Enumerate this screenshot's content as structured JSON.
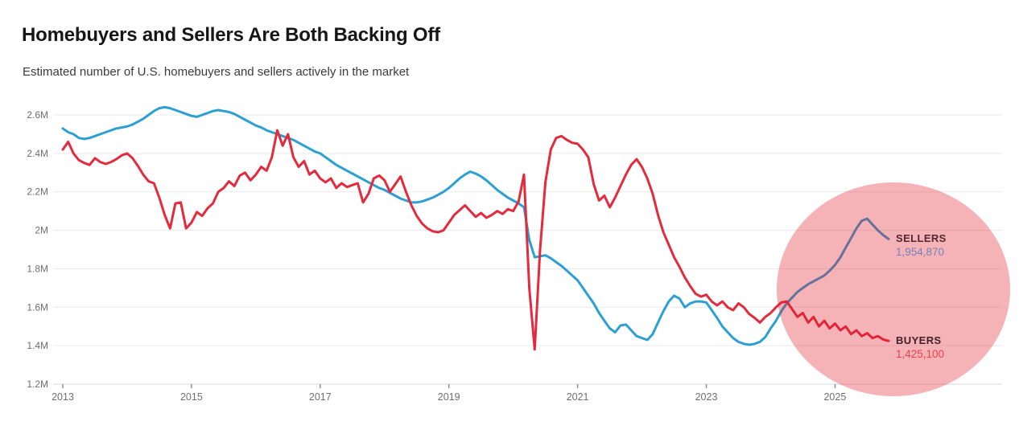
{
  "title": "Homebuyers and Sellers Are Both Backing Off",
  "subtitle": "Estimated number of U.S. homebuyers and sellers actively in the market",
  "annotations": {
    "sellers_label": "SELLERS",
    "sellers_value": "1,954,870",
    "buyers_label": "BUYERS",
    "buyers_value": "1,425,100"
  },
  "colors": {
    "sellers_line": "#2C9FD3",
    "buyers_line": "#E32B3D",
    "highlight_circle": "rgba(225,25,38,0.33)",
    "sellers_label_text": "#532830",
    "sellers_value_text": "#7482B6",
    "buyers_label_text": "#3F2128",
    "buyers_value_text": "#E8434F",
    "gridline": "#E9E9E9",
    "axis_line": "#D8D8D8",
    "tick_mark": "#8F8F8F"
  },
  "chart_data": {
    "type": "line",
    "title": "Homebuyers and Sellers Are Both Backing Off",
    "subtitle": "Estimated number of U.S. homebuyers and sellers actively in the market",
    "x_start_year": 2013,
    "x_step": "month",
    "x_end": "2025-11",
    "ylim": [
      1.2,
      2.6
    ],
    "y_ticks": [
      "2.6M",
      "2.4M",
      "2.2M",
      "2M",
      "1.8M",
      "1.6M",
      "1.4M",
      "1.2M"
    ],
    "y_tick_values": [
      2.6,
      2.4,
      2.2,
      2.0,
      1.8,
      1.6,
      1.4,
      1.2
    ],
    "x_ticks": [
      "2013",
      "2015",
      "2017",
      "2019",
      "2021",
      "2023",
      "2025"
    ],
    "grid": true,
    "legend_position": "end-of-line-labels",
    "highlight": {
      "shape": "circle",
      "center_year": 2025.9,
      "note": "pink circle over 2024-2025 region"
    },
    "series": [
      {
        "name": "Sellers",
        "color": "#2C9FD3",
        "end_label": "SELLERS",
        "end_value": 1954870,
        "values": [
          2.53,
          2.51,
          2.5,
          2.48,
          2.475,
          2.48,
          2.49,
          2.5,
          2.51,
          2.52,
          2.53,
          2.535,
          2.54,
          2.55,
          2.565,
          2.58,
          2.6,
          2.62,
          2.635,
          2.64,
          2.635,
          2.625,
          2.615,
          2.605,
          2.595,
          2.59,
          2.6,
          2.61,
          2.62,
          2.625,
          2.62,
          2.615,
          2.605,
          2.59,
          2.575,
          2.56,
          2.545,
          2.535,
          2.52,
          2.51,
          2.5,
          2.49,
          2.48,
          2.47,
          2.455,
          2.44,
          2.425,
          2.41,
          2.4,
          2.38,
          2.36,
          2.34,
          2.325,
          2.31,
          2.295,
          2.28,
          2.265,
          2.25,
          2.235,
          2.22,
          2.21,
          2.195,
          2.18,
          2.165,
          2.155,
          2.145,
          2.145,
          2.15,
          2.16,
          2.17,
          2.185,
          2.2,
          2.22,
          2.245,
          2.27,
          2.29,
          2.305,
          2.295,
          2.28,
          2.26,
          2.235,
          2.21,
          2.19,
          2.17,
          2.155,
          2.14,
          2.12,
          1.95,
          1.86,
          1.865,
          1.87,
          1.855,
          1.835,
          1.815,
          1.79,
          1.765,
          1.74,
          1.7,
          1.66,
          1.62,
          1.57,
          1.53,
          1.49,
          1.47,
          1.505,
          1.51,
          1.48,
          1.45,
          1.44,
          1.43,
          1.46,
          1.52,
          1.58,
          1.63,
          1.66,
          1.645,
          1.6,
          1.62,
          1.63,
          1.63,
          1.625,
          1.585,
          1.545,
          1.5,
          1.47,
          1.44,
          1.42,
          1.41,
          1.405,
          1.41,
          1.42,
          1.445,
          1.49,
          1.53,
          1.58,
          1.62,
          1.65,
          1.68,
          1.7,
          1.72,
          1.735,
          1.75,
          1.765,
          1.79,
          1.82,
          1.86,
          1.91,
          1.96,
          2.01,
          2.05,
          2.06,
          2.03,
          2.0,
          1.975,
          1.9549
        ]
      },
      {
        "name": "Buyers",
        "color": "#E32B3D",
        "end_label": "BUYERS",
        "end_value": 1425100,
        "values": [
          2.42,
          2.46,
          2.4,
          2.365,
          2.35,
          2.34,
          2.375,
          2.355,
          2.345,
          2.355,
          2.37,
          2.39,
          2.4,
          2.375,
          2.335,
          2.29,
          2.255,
          2.245,
          2.17,
          2.08,
          2.01,
          2.14,
          2.145,
          2.01,
          2.04,
          2.095,
          2.075,
          2.115,
          2.14,
          2.2,
          2.22,
          2.255,
          2.23,
          2.285,
          2.3,
          2.26,
          2.29,
          2.33,
          2.31,
          2.38,
          2.52,
          2.44,
          2.5,
          2.38,
          2.33,
          2.36,
          2.29,
          2.31,
          2.27,
          2.25,
          2.27,
          2.22,
          2.245,
          2.225,
          2.235,
          2.245,
          2.145,
          2.19,
          2.27,
          2.285,
          2.26,
          2.2,
          2.24,
          2.28,
          2.2,
          2.13,
          2.075,
          2.035,
          2.01,
          1.995,
          1.99,
          2.0,
          2.04,
          2.08,
          2.105,
          2.13,
          2.1,
          2.07,
          2.09,
          2.065,
          2.08,
          2.1,
          2.085,
          2.11,
          2.1,
          2.15,
          2.29,
          1.7,
          1.38,
          1.9,
          2.25,
          2.42,
          2.48,
          2.49,
          2.47,
          2.455,
          2.45,
          2.42,
          2.38,
          2.24,
          2.155,
          2.18,
          2.12,
          2.17,
          2.23,
          2.29,
          2.34,
          2.37,
          2.33,
          2.27,
          2.19,
          2.08,
          1.99,
          1.925,
          1.86,
          1.81,
          1.755,
          1.71,
          1.67,
          1.655,
          1.665,
          1.63,
          1.61,
          1.63,
          1.6,
          1.585,
          1.62,
          1.6,
          1.565,
          1.545,
          1.52,
          1.55,
          1.57,
          1.6,
          1.625,
          1.63,
          1.59,
          1.55,
          1.57,
          1.52,
          1.55,
          1.5,
          1.53,
          1.49,
          1.515,
          1.48,
          1.5,
          1.46,
          1.48,
          1.45,
          1.465,
          1.44,
          1.45,
          1.432,
          1.4251
        ]
      }
    ]
  }
}
